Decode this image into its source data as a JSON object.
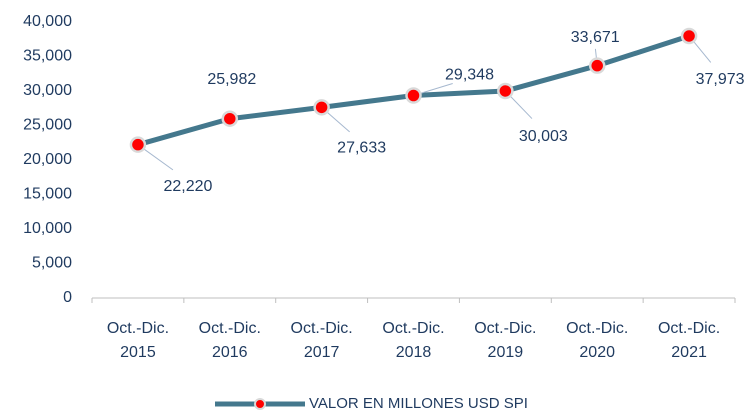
{
  "chart_data": {
    "type": "line",
    "categories": [
      "Oct.-Dic. 2015",
      "Oct.-Dic. 2016",
      "Oct.-Dic. 2017",
      "Oct.-Dic. 2018",
      "Oct.-Dic. 2019",
      "Oct.-Dic. 2020",
      "Oct.-Dic. 2021"
    ],
    "series": [
      {
        "name": "VALOR EN MILLONES USD SPI",
        "color": "#44788d",
        "marker_color": "#ff0000",
        "values": [
          22220,
          25982,
          27633,
          29348,
          30003,
          33671,
          37973
        ],
        "value_labels": [
          "22,220",
          "25,982",
          "27,633",
          "29,348",
          "30,003",
          "33,671",
          "37,973"
        ]
      }
    ],
    "ylim": [
      0,
      40000
    ],
    "yticks": [
      0,
      {
        "value": 5000,
        "label": "5,000"
      },
      {
        "value": 10000,
        "label": "10,000"
      },
      {
        "value": 15000,
        "label": "15,000"
      },
      {
        "value": 20000,
        "label": "20,000"
      },
      {
        "value": 25000,
        "label": "25,000"
      },
      {
        "value": 30000,
        "label": "30,000"
      },
      {
        "value": 35000,
        "label": "35,000"
      },
      {
        "value": 40000,
        "label": "40,000"
      }
    ],
    "legend": "bottom"
  }
}
